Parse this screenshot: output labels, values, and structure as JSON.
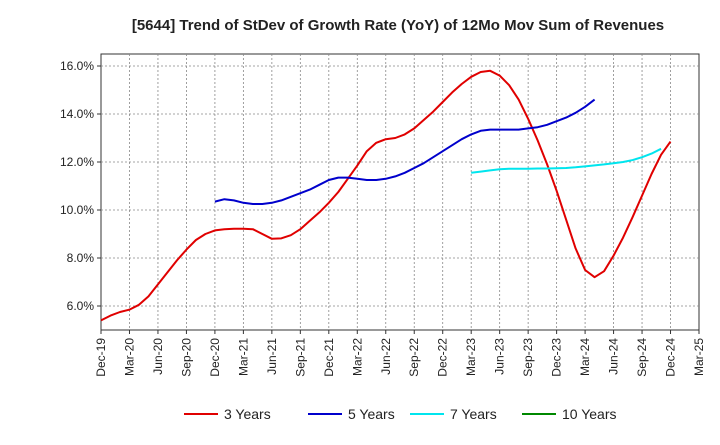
{
  "chart_data": {
    "type": "line",
    "title": "[5644]  Trend of StDev of Growth Rate (YoY) of 12Mo Mov Sum of Revenues",
    "xlabel": "",
    "ylabel": "",
    "ylim": [
      5.0,
      16.5
    ],
    "yticks": [
      6.0,
      8.0,
      10.0,
      12.0,
      14.0,
      16.0
    ],
    "ytick_labels": [
      "6.0%",
      "8.0%",
      "10.0%",
      "12.0%",
      "14.0%",
      "16.0%"
    ],
    "xlim": [
      "Dec-19",
      "Mar-25"
    ],
    "xtick_labels": [
      "Dec-19",
      "Mar-20",
      "Jun-20",
      "Sep-20",
      "Dec-20",
      "Mar-21",
      "Jun-21",
      "Sep-21",
      "Dec-21",
      "Mar-22",
      "Jun-22",
      "Sep-22",
      "Dec-22",
      "Mar-23",
      "Jun-23",
      "Sep-23",
      "Dec-23",
      "Mar-24",
      "Jun-24",
      "Sep-24",
      "Dec-24",
      "Mar-25"
    ],
    "grid": true,
    "legend_position": "bottom",
    "series": [
      {
        "name": "3 Years",
        "color": "#e00000",
        "start": "Dec-19",
        "values": [
          5.4,
          5.6,
          5.75,
          5.85,
          6.05,
          6.4,
          6.9,
          7.4,
          7.9,
          8.35,
          8.75,
          9.0,
          9.15,
          9.2,
          9.22,
          9.22,
          9.2,
          9.0,
          8.8,
          8.82,
          8.95,
          9.2,
          9.55,
          9.9,
          10.3,
          10.75,
          11.3,
          11.85,
          12.45,
          12.8,
          12.95,
          13.0,
          13.15,
          13.4,
          13.75,
          14.1,
          14.5,
          14.9,
          15.25,
          15.55,
          15.75,
          15.8,
          15.6,
          15.2,
          14.6,
          13.8,
          12.9,
          11.9,
          10.8,
          9.6,
          8.4,
          7.5,
          7.2,
          7.45,
          8.1,
          8.85,
          9.7,
          10.6,
          11.5,
          12.3,
          12.85
        ]
      },
      {
        "name": "5 Years",
        "color": "#0000cc",
        "start": "Dec-20",
        "values": [
          10.35,
          10.45,
          10.4,
          10.3,
          10.25,
          10.25,
          10.3,
          10.4,
          10.55,
          10.7,
          10.85,
          11.05,
          11.25,
          11.35,
          11.35,
          11.3,
          11.25,
          11.25,
          11.3,
          11.4,
          11.55,
          11.75,
          11.95,
          12.2,
          12.45,
          12.7,
          12.95,
          13.15,
          13.3,
          13.35,
          13.35,
          13.35,
          13.35,
          13.4,
          13.45,
          13.55,
          13.7,
          13.85,
          14.05,
          14.3,
          14.6
        ]
      },
      {
        "name": "7 Years",
        "color": "#00e5ee",
        "start": "Mar-23",
        "values": [
          11.55,
          11.6,
          11.65,
          11.7,
          11.72,
          11.72,
          11.72,
          11.73,
          11.73,
          11.74,
          11.75,
          11.78,
          11.82,
          11.86,
          11.9,
          11.95,
          12.0,
          12.08,
          12.2,
          12.35,
          12.55
        ]
      },
      {
        "name": "10 Years",
        "color": "#008800",
        "start": "Dec-24",
        "values": []
      }
    ]
  }
}
